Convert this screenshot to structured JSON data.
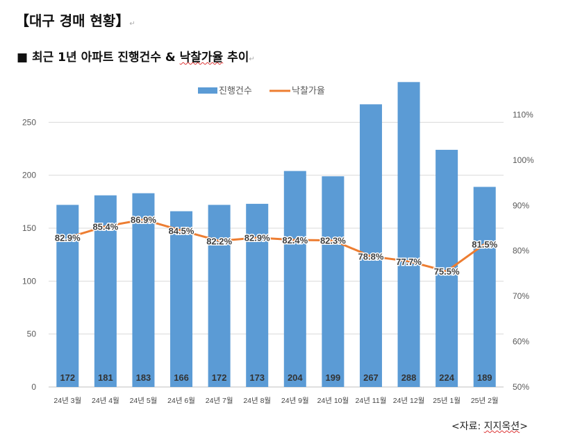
{
  "document": {
    "title": "【대구 경매 현황】",
    "subtitle_prefix": "■ 최근 1년 아파트 진행건수 & ",
    "subtitle_underlined": "낙찰가율",
    "subtitle_suffix": " 추이",
    "source_prefix": "<자료: ",
    "source_name": "지지옥션",
    "source_suffix": ">"
  },
  "chart_data": {
    "type": "bar+line",
    "categories": [
      "24년 3월",
      "24년 4월",
      "24년 5월",
      "24년 6월",
      "24년 7월",
      "24년 8월",
      "24년 9월",
      "24년 10월",
      "24년 11월",
      "24년 12월",
      "25년 1월",
      "25년 2월"
    ],
    "series": [
      {
        "name": "진행건수",
        "type": "bar",
        "axis": "left",
        "color": "#5b9bd5",
        "values": [
          172,
          181,
          183,
          166,
          172,
          173,
          204,
          199,
          267,
          288,
          224,
          189
        ]
      },
      {
        "name": "낙찰가율",
        "type": "line",
        "axis": "right",
        "color": "#ed7d31",
        "values": [
          82.9,
          85.4,
          86.9,
          84.5,
          82.2,
          82.9,
          82.4,
          82.3,
          78.8,
          77.7,
          75.5,
          81.5
        ]
      }
    ],
    "left_axis": {
      "ticks": [
        0,
        50,
        100,
        150,
        200,
        250
      ],
      "ylim": [
        0,
        300
      ]
    },
    "right_axis": {
      "ticks": [
        "50%",
        "60%",
        "70%",
        "80%",
        "90%",
        "100%",
        "110%"
      ],
      "ylim": [
        50,
        120
      ]
    },
    "grid": true,
    "legend": "top-center"
  }
}
